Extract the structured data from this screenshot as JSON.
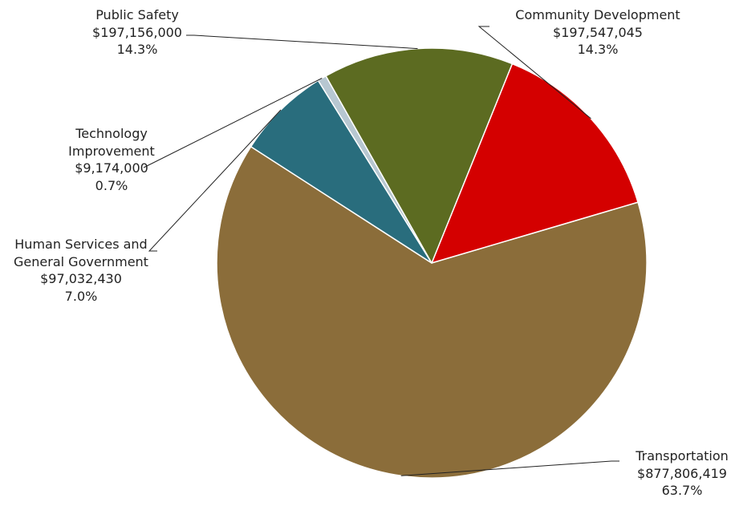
{
  "chart_data": {
    "type": "pie",
    "slices": [
      {
        "label_lines": [
          "Community Development"
        ],
        "value": 197547045,
        "value_text": "$197,547,045",
        "pct_text": "14.3%",
        "color": "#D40000"
      },
      {
        "label_lines": [
          "Transportation"
        ],
        "value": 877806419,
        "value_text": "$877,806,419",
        "pct_text": "63.7%",
        "color": "#8B6D3A"
      },
      {
        "label_lines": [
          "Human Services and",
          "General Government"
        ],
        "value": 97032430,
        "value_text": "$97,032,430",
        "pct_text": "7.0%",
        "color": "#296D7D"
      },
      {
        "label_lines": [
          "Technology",
          "Improvement"
        ],
        "value": 9174000,
        "value_text": "$9,174,000",
        "pct_text": "0.7%",
        "color": "#B7C7D1"
      },
      {
        "label_lines": [
          "Public Safety"
        ],
        "value": 197156000,
        "value_text": "$197,156,000",
        "pct_text": "14.3%",
        "color": "#5C6B21"
      }
    ],
    "start_angle_deg": 22,
    "direction": "clockwise"
  }
}
